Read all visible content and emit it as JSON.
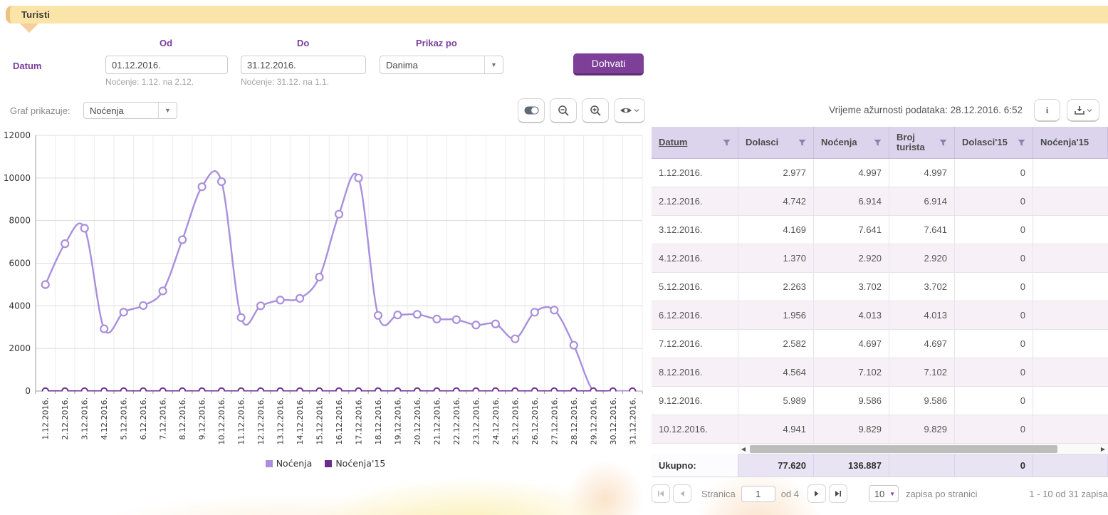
{
  "header": {
    "title": "Turisti"
  },
  "filters": {
    "datum_label": "Datum",
    "od_label": "Od",
    "do_label": "Do",
    "prikaz_label": "Prikaz po",
    "od_value": "01.12.2016.",
    "do_value": "31.12.2016.",
    "od_hint": "Noćenje: 1.12. na 2.12.",
    "do_hint": "Noćenje: 31.12. na 1.1.",
    "prikaz_value": "Danima",
    "dohvati_label": "Dohvati"
  },
  "chart_controls": {
    "graf_label": "Graf prikazuje:",
    "graf_value": "Noćenja"
  },
  "data_info": {
    "updated_text": "Vrijeme ažurnosti podataka: 28.12.2016. 6:52",
    "info_button_label": "i"
  },
  "chart_data": {
    "type": "line",
    "x": [
      "1.12.2016.",
      "2.12.2016.",
      "3.12.2016.",
      "4.12.2016.",
      "5.12.2016.",
      "6.12.2016.",
      "7.12.2016.",
      "8.12.2016.",
      "9.12.2016.",
      "10.12.2016.",
      "11.12.2016.",
      "12.12.2016.",
      "13.12.2016.",
      "14.12.2016.",
      "15.12.2016.",
      "16.12.2016.",
      "17.12.2016.",
      "18.12.2016.",
      "19.12.2016.",
      "20.12.2016.",
      "21.12.2016.",
      "22.12.2016.",
      "23.12.2016.",
      "24.12.2016.",
      "25.12.2016.",
      "26.12.2016.",
      "27.12.2016.",
      "28.12.2016.",
      "29.12.2016.",
      "30.12.2016.",
      "31.12.2016."
    ],
    "series": [
      {
        "name": "Noćenja",
        "color": "#a98fdd",
        "values": [
          4997,
          6914,
          7641,
          2920,
          3702,
          4013,
          4697,
          7102,
          9586,
          9829,
          3450,
          4000,
          4270,
          4350,
          5350,
          8300,
          10000,
          3550,
          3570,
          3600,
          3380,
          3350,
          3100,
          3150,
          2450,
          3700,
          3800,
          2150,
          0,
          0,
          0
        ]
      },
      {
        "name": "Noćenja'15",
        "color": "#6a2c91",
        "values": [
          0,
          0,
          0,
          0,
          0,
          0,
          0,
          0,
          0,
          0,
          0,
          0,
          0,
          0,
          0,
          0,
          0,
          0,
          0,
          0,
          0,
          0,
          0,
          0,
          0,
          0,
          0,
          0,
          0,
          0,
          0
        ]
      }
    ],
    "title": "",
    "xlabel": "",
    "ylabel": "",
    "ylim": [
      0,
      12000
    ],
    "yticks": [
      0,
      2000,
      4000,
      6000,
      8000,
      10000,
      12000
    ],
    "grid": true,
    "legend_position": "bottom"
  },
  "table": {
    "columns": [
      "Datum",
      "Dolasci",
      "Noćenja",
      "Broj turista",
      "Dolasci'15",
      "Noćenja'15"
    ],
    "sorted_column": "Datum",
    "rows": [
      [
        "1.12.2016.",
        "2.977",
        "4.997",
        "4.997",
        "0",
        ""
      ],
      [
        "2.12.2016.",
        "4.742",
        "6.914",
        "6.914",
        "0",
        ""
      ],
      [
        "3.12.2016.",
        "4.169",
        "7.641",
        "7.641",
        "0",
        ""
      ],
      [
        "4.12.2016.",
        "1.370",
        "2.920",
        "2.920",
        "0",
        ""
      ],
      [
        "5.12.2016.",
        "2.263",
        "3.702",
        "3.702",
        "0",
        ""
      ],
      [
        "6.12.2016.",
        "1.956",
        "4.013",
        "4.013",
        "0",
        ""
      ],
      [
        "7.12.2016.",
        "2.582",
        "4.697",
        "4.697",
        "0",
        ""
      ],
      [
        "8.12.2016.",
        "4.564",
        "7.102",
        "7.102",
        "0",
        ""
      ],
      [
        "9.12.2016.",
        "5.989",
        "9.586",
        "9.586",
        "0",
        ""
      ],
      [
        "10.12.2016.",
        "4.941",
        "9.829",
        "9.829",
        "0",
        ""
      ]
    ],
    "footer": [
      "Ukupno:",
      "77.620",
      "136.887",
      "",
      "0",
      ""
    ]
  },
  "pagination": {
    "stranica_label": "Stranica",
    "page_value": "1",
    "of_label": "od 4",
    "page_size": "10",
    "per_page_label": "zapisa po stranici",
    "records_label": "1 - 10 od 31 zapisa"
  }
}
